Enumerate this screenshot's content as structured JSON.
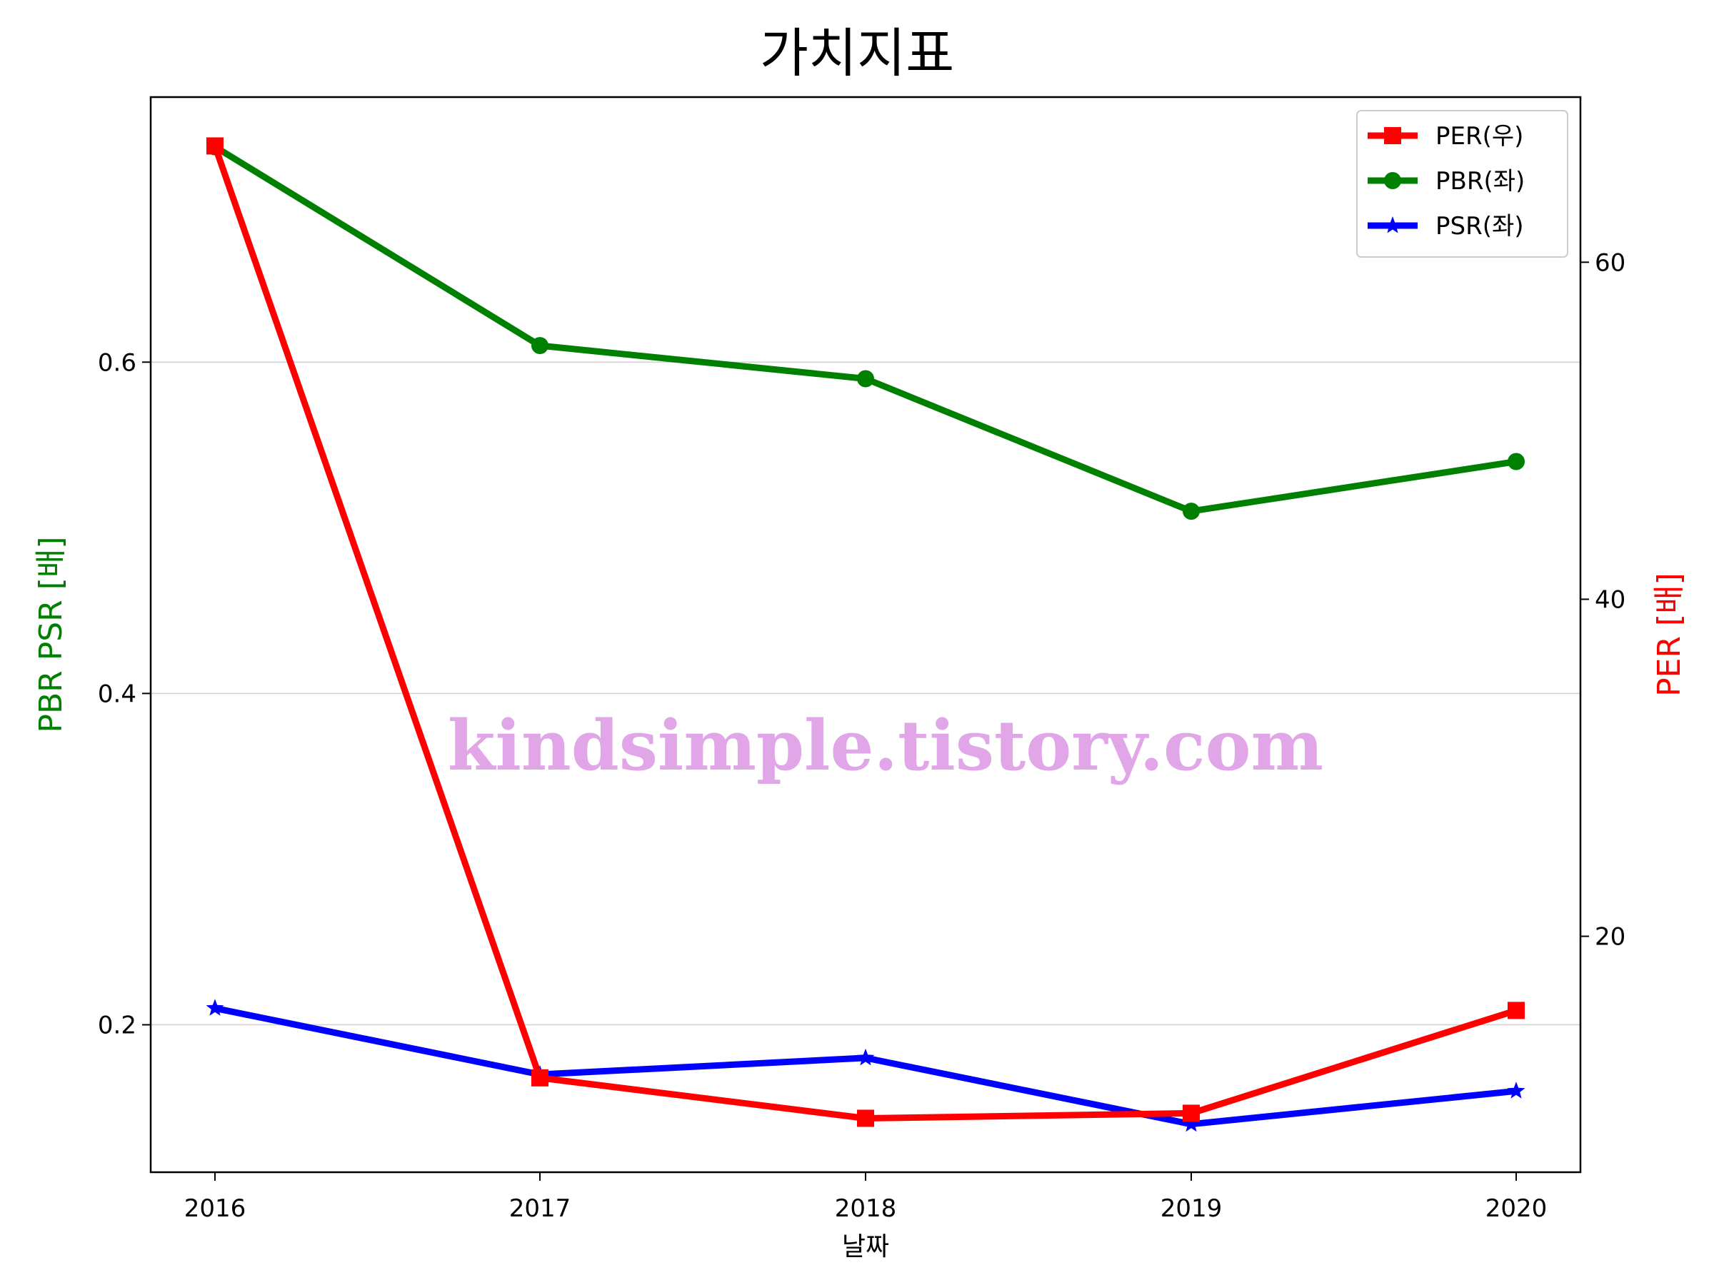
{
  "chart_data": {
    "type": "line",
    "title": "가치지표",
    "xlabel": "날짜",
    "ylabel_left": "PBR PSR [배]",
    "ylabel_right": "PER [배]",
    "categories": [
      "2016",
      "2017",
      "2018",
      "2019",
      "2020"
    ],
    "left_axis": {
      "ylim": [
        0.111,
        0.76
      ],
      "ticks": [
        "0.2",
        "0.4",
        "0.6"
      ],
      "tick_values": [
        0.2,
        0.4,
        0.6
      ],
      "grid": true
    },
    "right_axis": {
      "ylim": [
        6.0,
        69.8
      ],
      "ticks": [
        "20",
        "40",
        "60"
      ],
      "tick_values": [
        20,
        40,
        60
      ]
    },
    "series": [
      {
        "name": "PER(우)",
        "axis": "right",
        "color": "#ff0000",
        "marker": "square",
        "values": [
          66.9,
          11.6,
          9.2,
          9.5,
          15.6
        ]
      },
      {
        "name": "PBR(좌)",
        "axis": "left",
        "color": "#008000",
        "marker": "circle",
        "values": [
          0.73,
          0.61,
          0.59,
          0.51,
          0.54
        ]
      },
      {
        "name": "PSR(좌)",
        "axis": "left",
        "color": "#0000ff",
        "marker": "star",
        "values": [
          0.21,
          0.17,
          0.18,
          0.14,
          0.16
        ]
      }
    ],
    "legend_position": "top-right",
    "watermark": "kindsimple.tistory.com"
  }
}
